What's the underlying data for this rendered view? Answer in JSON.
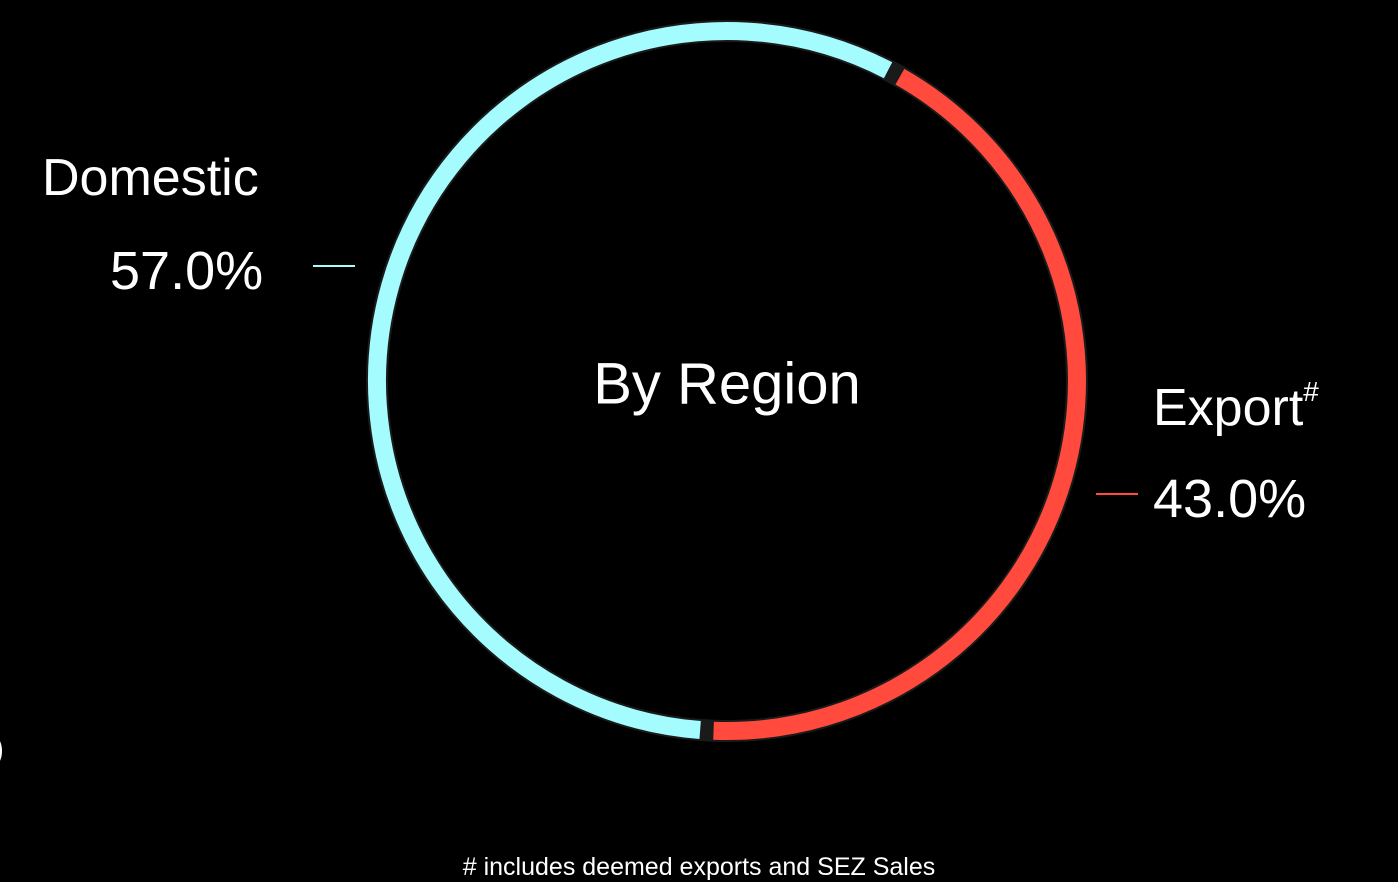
{
  "chart_data": {
    "type": "pie",
    "variant": "donut",
    "title": "",
    "center_label": "By Region",
    "categories": [
      "Domestic",
      "Export"
    ],
    "values": [
      57.0,
      43.0
    ],
    "value_labels": [
      "57.0%",
      "43.0%"
    ],
    "export_marker": "#",
    "colors": [
      "#a4fcff",
      "#ff4a3d"
    ],
    "footnote": "# includes deemed exports and SEZ Sales",
    "background": "#000000"
  }
}
